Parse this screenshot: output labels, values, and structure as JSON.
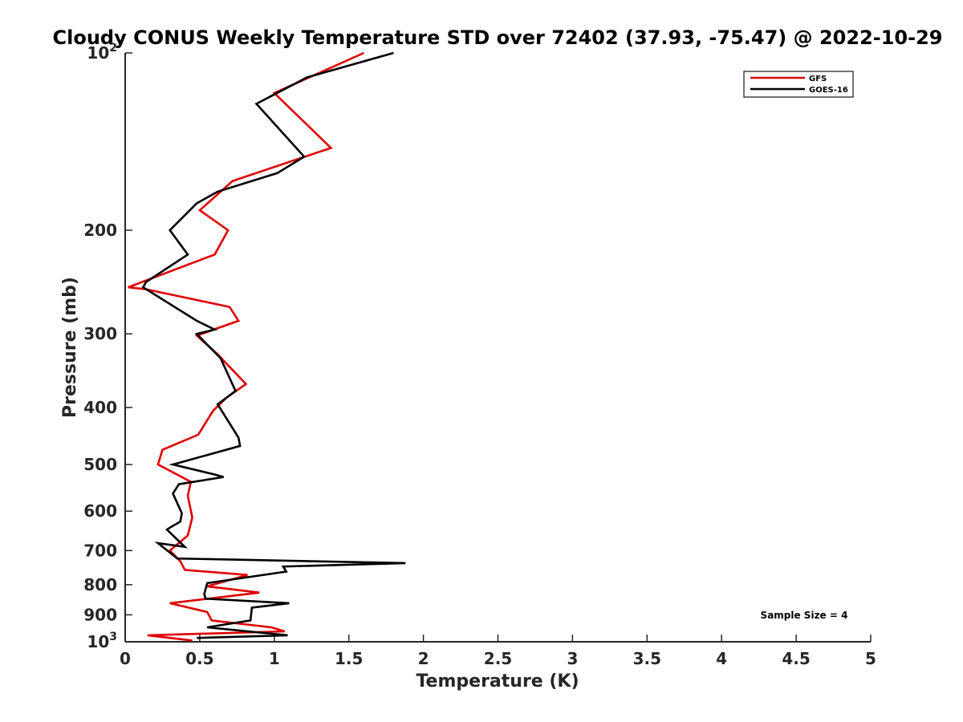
{
  "chart_data": {
    "type": "line",
    "title": "Cloudy CONUS Weekly Temperature STD over 72402 (37.93, -75.47) @ 2022-10-29",
    "xlabel": "Temperature (K)",
    "ylabel": "Pressure (mb)",
    "xlim": [
      0,
      5
    ],
    "ylim": [
      1000,
      100
    ],
    "yscale": "log",
    "y_reversed": true,
    "grid": false,
    "legend_position": "top-right",
    "x_ticks": [
      "0",
      "0.5",
      "1",
      "1.5",
      "2",
      "2.5",
      "3",
      "3.5",
      "4",
      "4.5",
      "5"
    ],
    "y_ticks": [
      {
        "value": 100,
        "base": "10",
        "exp": "2"
      },
      {
        "value": 200,
        "label": "200"
      },
      {
        "value": 300,
        "label": "300"
      },
      {
        "value": 400,
        "label": "400"
      },
      {
        "value": 500,
        "label": "500"
      },
      {
        "value": 600,
        "label": "600"
      },
      {
        "value": 700,
        "label": "700"
      },
      {
        "value": 800,
        "label": "800"
      },
      {
        "value": 900,
        "label": "900"
      },
      {
        "value": 1000,
        "base": "10",
        "exp": "3"
      }
    ],
    "annotation": "Sample Size = 4",
    "series": [
      {
        "name": "GFS",
        "color": "#e00000",
        "x": [
          1.6,
          1.0,
          1.38,
          0.72,
          0.5,
          0.69,
          0.6,
          0.02,
          0.14,
          0.7,
          0.76,
          0.48,
          0.62,
          0.81,
          0.68,
          0.59,
          0.49,
          0.25,
          0.22,
          0.44,
          0.42,
          0.45,
          0.42,
          0.3,
          0.37,
          0.4,
          0.82,
          0.55,
          0.9,
          0.3,
          0.55,
          0.58,
          0.98,
          1.07,
          0.15,
          0.45
        ],
        "y": [
          100,
          117,
          145,
          165,
          185,
          200,
          220,
          250,
          252,
          270,
          285,
          302,
          325,
          365,
          385,
          405,
          445,
          472,
          500,
          535,
          565,
          615,
          660,
          700,
          730,
          755,
          770,
          805,
          825,
          860,
          890,
          920,
          945,
          960,
          975,
          995
        ]
      },
      {
        "name": "GOES-16",
        "color": "#000000",
        "x": [
          1.8,
          1.22,
          0.88,
          1.2,
          1.02,
          0.62,
          0.48,
          0.3,
          0.42,
          0.14,
          0.12,
          0.48,
          0.6,
          0.48,
          0.64,
          0.74,
          0.62,
          0.76,
          0.77,
          0.32,
          0.6,
          0.66,
          0.36,
          0.32,
          0.38,
          0.37,
          0.3,
          0.28,
          0.4,
          0.22,
          0.35,
          1.88,
          1.06,
          1.08,
          0.55,
          0.53,
          0.54,
          1.1,
          0.85,
          0.84,
          0.55,
          1.09,
          0.48
        ],
        "y": [
          100,
          110,
          122,
          150,
          160,
          172,
          180,
          200,
          220,
          245,
          250,
          285,
          295,
          300,
          330,
          375,
          395,
          450,
          465,
          500,
          520,
          525,
          540,
          560,
          605,
          625,
          640,
          645,
          690,
          680,
          722,
          735,
          745,
          760,
          795,
          830,
          845,
          860,
          875,
          920,
          945,
          975,
          985
        ]
      }
    ]
  }
}
